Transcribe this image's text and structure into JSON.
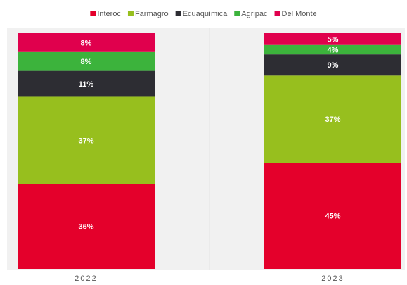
{
  "chart_data": {
    "type": "stacked_bar",
    "categories": [
      "2022",
      "2023"
    ],
    "ylim": [
      0,
      100
    ],
    "series": [
      {
        "name": "Interoc",
        "color": "#e4002b",
        "values": [
          36,
          45
        ],
        "value_labels": [
          "36%",
          "45%"
        ]
      },
      {
        "name": "Farmagro",
        "color": "#97bf1e",
        "values": [
          37,
          37
        ],
        "value_labels": [
          "37%",
          "37%"
        ]
      },
      {
        "name": "Ecuaquímica",
        "color": "#2d2d33",
        "values": [
          11,
          9
        ],
        "value_labels": [
          "11%",
          "9%"
        ]
      },
      {
        "name": "Agripac",
        "color": "#3cb33c",
        "values": [
          8,
          4
        ],
        "value_labels": [
          "8%",
          "4%"
        ]
      },
      {
        "name": "Del Monte",
        "color": "#e0004d",
        "values": [
          8,
          5
        ],
        "value_labels": [
          "8%",
          "5%"
        ]
      }
    ]
  }
}
